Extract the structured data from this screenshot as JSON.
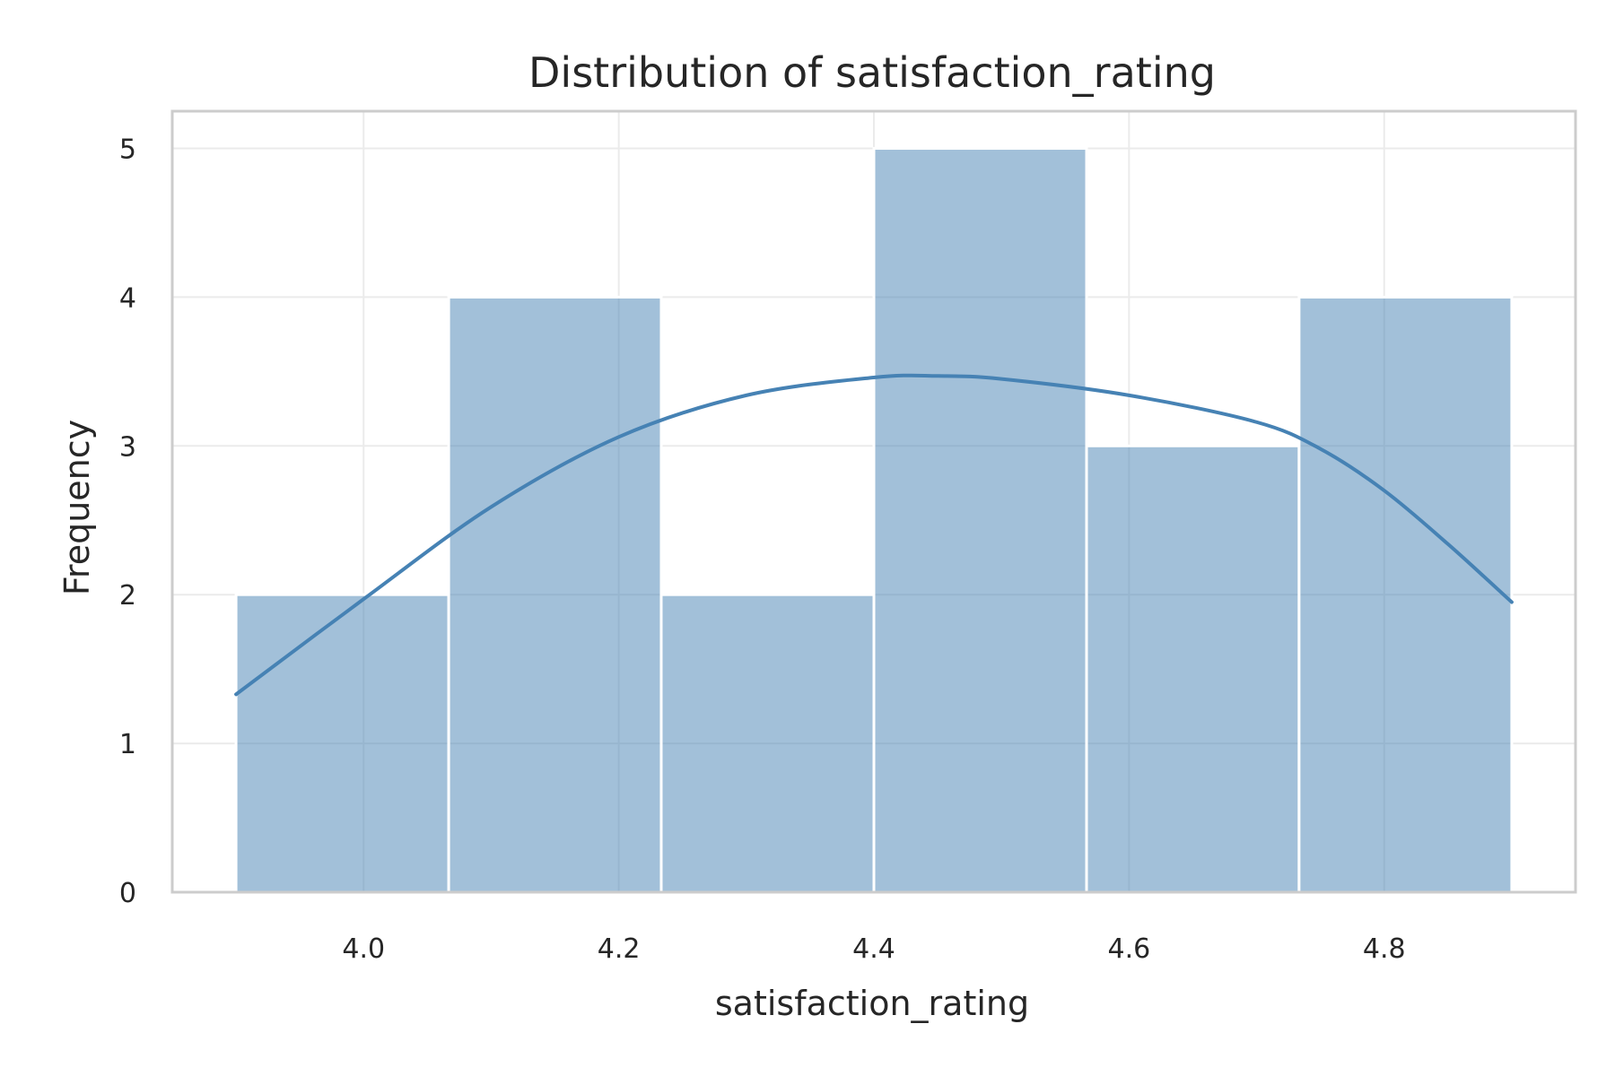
{
  "chart_data": {
    "type": "bar",
    "title": "Distribution of satisfaction_rating",
    "xlabel": "satisfaction_rating",
    "ylabel": "Frequency",
    "xlim": [
      3.85,
      4.95
    ],
    "ylim": [
      0,
      5.25
    ],
    "xticks": [
      "4.0",
      "4.2",
      "4.4",
      "4.6",
      "4.8"
    ],
    "xtick_values": [
      4.0,
      4.2,
      4.4,
      4.6,
      4.8
    ],
    "yticks": [
      "0",
      "1",
      "2",
      "3",
      "4",
      "5"
    ],
    "ytick_values": [
      0,
      1,
      2,
      3,
      4,
      5
    ],
    "grid": true,
    "bins": [
      {
        "start": 3.9,
        "end": 4.0667,
        "value": 2
      },
      {
        "start": 4.0667,
        "end": 4.2333,
        "value": 4
      },
      {
        "start": 4.2333,
        "end": 4.4,
        "value": 2
      },
      {
        "start": 4.4,
        "end": 4.5667,
        "value": 5
      },
      {
        "start": 4.5667,
        "end": 4.7333,
        "value": 3
      },
      {
        "start": 4.7333,
        "end": 4.9,
        "value": 4
      }
    ],
    "kde": {
      "x": [
        3.9,
        4.0,
        4.1,
        4.2,
        4.3,
        4.4,
        4.45,
        4.5,
        4.6,
        4.7,
        4.75,
        4.8,
        4.85,
        4.9
      ],
      "y": [
        1.33,
        1.97,
        2.59,
        3.06,
        3.34,
        3.46,
        3.47,
        3.45,
        3.34,
        3.16,
        2.98,
        2.7,
        2.34,
        1.95
      ]
    },
    "bar_color": "#4682b4",
    "bar_opacity": 0.5,
    "line_color": "#4682b4"
  }
}
